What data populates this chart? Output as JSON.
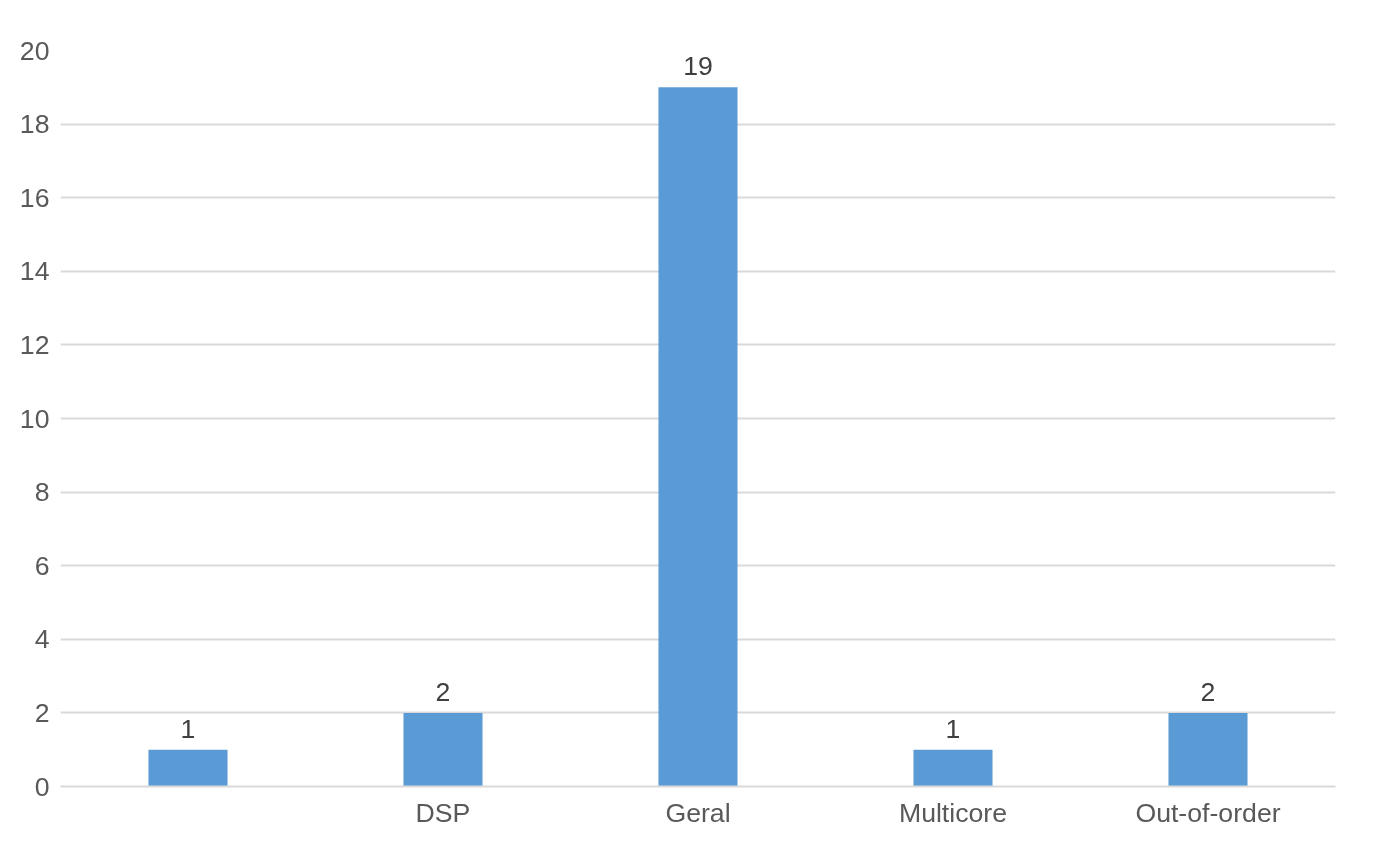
{
  "chart_data": {
    "type": "bar",
    "categories": [
      null,
      "DSP",
      "Geral",
      "Multicore",
      "Out-of-order"
    ],
    "values": [
      1,
      2,
      19,
      1,
      2
    ],
    "color": "#5b9bd5",
    "ylim": [
      0,
      20
    ],
    "yticks": [
      0,
      2,
      4,
      6,
      8,
      10,
      12,
      14,
      16,
      18,
      20
    ],
    "grid": "y",
    "data_labels": true
  }
}
